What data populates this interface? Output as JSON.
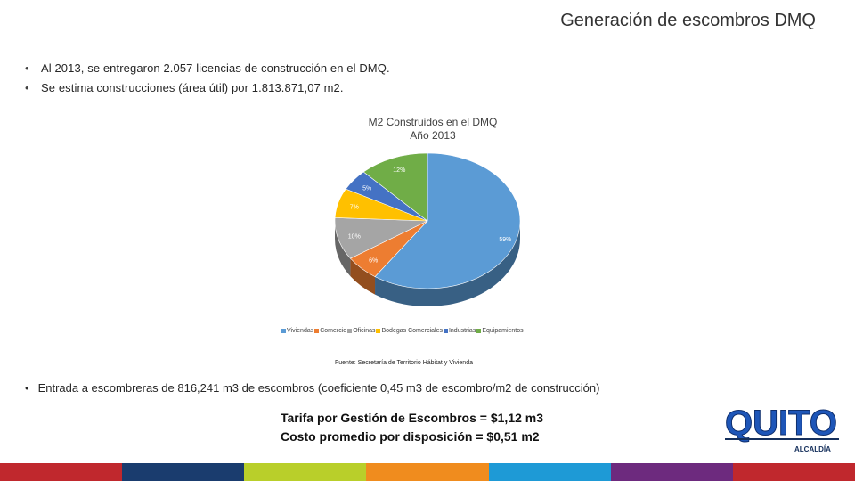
{
  "slide": {
    "title": "Generación de escombros DMQ",
    "bullets": [
      "Al 2013, se entregaron 2.057 licencias de construcción en el DMQ.",
      "Se estima construcciones (área útil) por 1.813.871,07 m2."
    ],
    "bullet_bottom": "Entrada a escombreras de 816,241 m3 de escombros (coeficiente 0,45 m3 de escombro/m2 de construcción)",
    "source": "Fuente: Secretaría de Territorio Hábitat y Vivienda",
    "tarifa_line1": "Tarifa por Gestión de Escombros = $1,12 m3",
    "tarifa_line2": "Costo promedio por disposición = $0,51 m2",
    "bullet_symbol": "•"
  },
  "logo": {
    "text": "QUITO",
    "subtext": "ALCALDÍA"
  },
  "footer_colors": [
    "#c0282d",
    "#1a3c6e",
    "#b9cf2a",
    "#f08c1e",
    "#1e9ad6",
    "#6d2a7e",
    "#c0282d"
  ],
  "chart_data": {
    "type": "pie",
    "title": "M2 Construidos en el DMQ",
    "subtitle": "Año 2013",
    "categories": [
      "Viviendas",
      "Comercio",
      "Oficinas",
      "Bodegas Comerciales",
      "Industrias",
      "Equipamientos"
    ],
    "values": [
      59,
      6,
      10,
      7,
      5,
      12
    ],
    "labels": [
      "59%",
      "6%",
      "10%",
      "7%",
      "5%",
      "12%"
    ],
    "colors": [
      "#5b9bd5",
      "#ed7d31",
      "#a5a5a5",
      "#ffc000",
      "#4472c4",
      "#70ad47"
    ],
    "legend_position": "bottom",
    "style": "3d"
  }
}
